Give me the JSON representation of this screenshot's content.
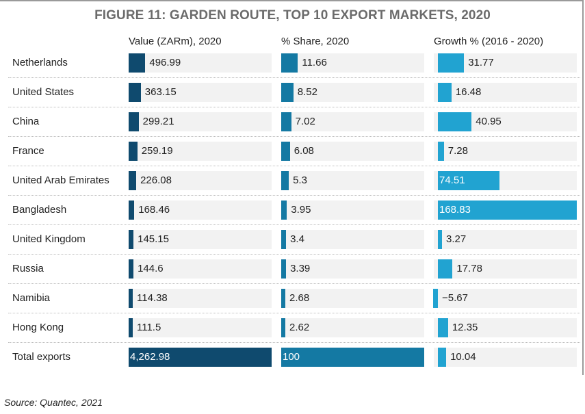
{
  "chart_data": {
    "type": "table",
    "title": "FIGURE 11: GARDEN ROUTE, TOP 10 EXPORT MARKETS, 2020",
    "columns": [
      "Value (ZARm), 2020",
      "% Share, 2020",
      "Growth % (2016 - 2020)"
    ],
    "rows": [
      {
        "country": "Netherlands",
        "value": "496.99",
        "share": "11.66",
        "growth": "31.77"
      },
      {
        "country": "United States",
        "value": "363.15",
        "share": "8.52",
        "growth": "16.48"
      },
      {
        "country": "China",
        "value": "299.21",
        "share": "7.02",
        "growth": "40.95"
      },
      {
        "country": "France",
        "value": "259.19",
        "share": "6.08",
        "growth": "7.28"
      },
      {
        "country": "United Arab Emirates",
        "value": "226.08",
        "share": "5.3",
        "growth": "74.51"
      },
      {
        "country": "Bangladesh",
        "value": "168.46",
        "share": "3.95",
        "growth": "168.83"
      },
      {
        "country": "United Kingdom",
        "value": "145.15",
        "share": "3.4",
        "growth": "3.27"
      },
      {
        "country": "Russia",
        "value": "144.6",
        "share": "3.39",
        "growth": "17.78"
      },
      {
        "country": "Namibia",
        "value": "114.38",
        "share": "2.68",
        "growth": "-5.67"
      },
      {
        "country": "Hong Kong",
        "value": "111.5",
        "share": "2.62",
        "growth": "12.35"
      },
      {
        "country": "Total exports",
        "value": "4,262.98",
        "share": "100",
        "growth": "10.04"
      }
    ],
    "colors": {
      "value": "#0f4a6e",
      "share": "#1479a3",
      "growth": "#21a3d1",
      "track": "#f2f2f2"
    }
  },
  "source": "Source: Quantec, 2021"
}
